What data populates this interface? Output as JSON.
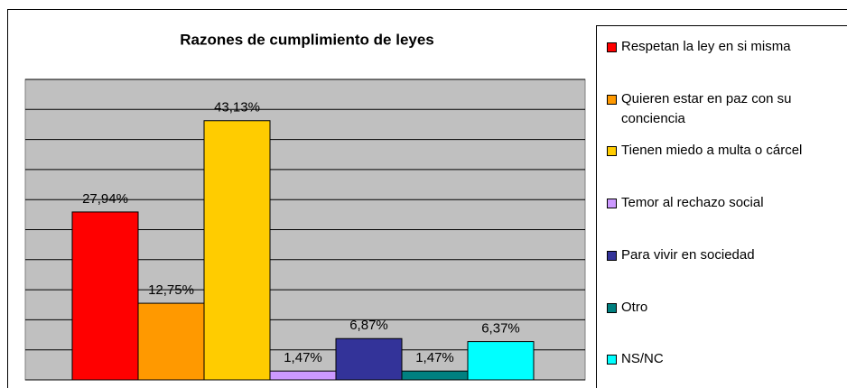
{
  "chart_data": {
    "type": "bar",
    "title": "Razones de cumplimiento de leyes",
    "series": [
      {
        "name": "Respetan la ley en si misma",
        "color": "#ff0000",
        "values": [
          27.94
        ],
        "value_labels": [
          "27,94%"
        ]
      },
      {
        "name": "Quieren estar en paz con su conciencia",
        "color": "#ff9900",
        "values": [
          12.75
        ],
        "value_labels": [
          "12,75%"
        ]
      },
      {
        "name": "Tienen miedo a multa o cárcel",
        "color": "#ffcc00",
        "values": [
          43.13
        ],
        "value_labels": [
          "43,13%"
        ]
      },
      {
        "name": "Temor al rechazo social",
        "color": "#cc99ff",
        "values": [
          1.47
        ],
        "value_labels": [
          "1,47%"
        ]
      },
      {
        "name": "Para vivir  en sociedad",
        "color": "#333399",
        "values": [
          6.87
        ],
        "value_labels": [
          "6,87%"
        ]
      },
      {
        "name": "Otro",
        "color": "#008080",
        "values": [
          1.47
        ],
        "value_labels": [
          "1,47%"
        ]
      },
      {
        "name": "NS/NC",
        "color": "#00ffff",
        "values": [
          6.37
        ],
        "value_labels": [
          "6,37%"
        ]
      }
    ],
    "ylim": [
      0,
      50
    ],
    "yticks": [
      0,
      5,
      10,
      15,
      20,
      25,
      30,
      35,
      40,
      45,
      50
    ],
    "grid": true,
    "legend": "right"
  }
}
